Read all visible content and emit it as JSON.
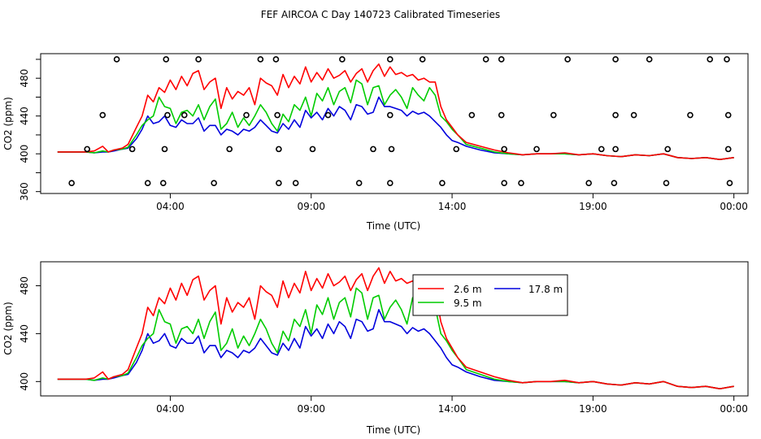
{
  "colors": {
    "s26": "#ff0000",
    "s95": "#00cc00",
    "s178": "#0000dd",
    "axis": "#000000"
  },
  "chart_data": [
    {
      "type": "line",
      "title": "FEF AIRCOA C  Day 140723  Calibrated Timeseries",
      "xlabel": "Time (UTC)",
      "ylabel": "CO2 (ppm)",
      "xlim": [
        -0.6,
        24.5
      ],
      "ylim": [
        358,
        506
      ],
      "xticks": [
        {
          "v": 4,
          "label": "04:00"
        },
        {
          "v": 9,
          "label": "09:00"
        },
        {
          "v": 14,
          "label": "14:00"
        },
        {
          "v": 19,
          "label": "19:00"
        },
        {
          "v": 24,
          "label": "00:00"
        }
      ],
      "yticks": [
        360,
        400,
        440,
        480
      ],
      "markers": {
        "y500": [
          2.1,
          3.85,
          5.0,
          7.2,
          7.75,
          10.1,
          11.8,
          12.95,
          15.2,
          15.75,
          18.1,
          19.8,
          21.0,
          23.15,
          23.75
        ],
        "y441": [
          1.6,
          3.9,
          4.5,
          6.7,
          7.8,
          9.6,
          11.8,
          14.7,
          15.75,
          17.6,
          19.8,
          20.45,
          22.45,
          23.8
        ],
        "y405": [
          1.05,
          2.65,
          3.8,
          6.1,
          7.85,
          9.05,
          11.2,
          11.85,
          14.15,
          15.85,
          17.0,
          19.3,
          19.8,
          21.65,
          23.8
        ],
        "y369": [
          0.5,
          3.2,
          3.75,
          5.55,
          7.85,
          8.45,
          10.7,
          11.8,
          13.65,
          15.85,
          16.45,
          18.85,
          19.75,
          21.6,
          23.85
        ]
      },
      "series": [
        {
          "name": "2.6 m",
          "x": [
            0,
            1,
            1.3,
            1.6,
            1.8,
            2,
            2.3,
            2.5,
            2.8,
            3,
            3.2,
            3.4,
            3.6,
            3.8,
            4,
            4.2,
            4.4,
            4.6,
            4.8,
            5,
            5.2,
            5.4,
            5.6,
            5.8,
            6,
            6.2,
            6.4,
            6.6,
            6.8,
            7,
            7.2,
            7.4,
            7.6,
            7.8,
            8,
            8.2,
            8.4,
            8.6,
            8.8,
            9,
            9.2,
            9.4,
            9.6,
            9.8,
            10,
            10.2,
            10.4,
            10.6,
            10.8,
            11,
            11.2,
            11.4,
            11.6,
            11.8,
            12,
            12.2,
            12.4,
            12.6,
            12.8,
            13,
            13.2,
            13.4,
            13.6,
            13.8,
            14,
            14.2,
            14.5,
            15,
            15.5,
            16,
            16.5,
            17,
            17.5,
            18,
            18.5,
            19,
            19.5,
            20,
            20.5,
            21,
            21.5,
            22,
            22.5,
            23,
            23.5,
            24
          ],
          "y": [
            402,
            402,
            403,
            408,
            402,
            404,
            406,
            410,
            428,
            440,
            462,
            455,
            470,
            465,
            478,
            468,
            482,
            472,
            485,
            488,
            468,
            476,
            480,
            448,
            470,
            458,
            466,
            462,
            470,
            452,
            480,
            475,
            472,
            462,
            484,
            470,
            482,
            474,
            492,
            476,
            486,
            478,
            490,
            480,
            483,
            488,
            476,
            485,
            490,
            476,
            488,
            495,
            482,
            492,
            484,
            486,
            482,
            484,
            478,
            480,
            476,
            476,
            450,
            436,
            428,
            420,
            412,
            408,
            404,
            401,
            399,
            400,
            400,
            401,
            399,
            400,
            398,
            397,
            399,
            398,
            400,
            396,
            395,
            396,
            394,
            396
          ]
        },
        {
          "name": "9.5 m",
          "x": [
            0,
            1,
            1.3,
            1.6,
            1.8,
            2,
            2.3,
            2.5,
            2.8,
            3,
            3.2,
            3.4,
            3.6,
            3.8,
            4,
            4.2,
            4.4,
            4.6,
            4.8,
            5,
            5.2,
            5.4,
            5.6,
            5.8,
            6,
            6.2,
            6.4,
            6.6,
            6.8,
            7,
            7.2,
            7.4,
            7.6,
            7.8,
            8,
            8.2,
            8.4,
            8.6,
            8.8,
            9,
            9.2,
            9.4,
            9.6,
            9.8,
            10,
            10.2,
            10.4,
            10.6,
            10.8,
            11,
            11.2,
            11.4,
            11.6,
            11.8,
            12,
            12.2,
            12.4,
            12.6,
            12.8,
            13,
            13.2,
            13.4,
            13.6,
            13.8,
            14,
            14.2,
            14.5,
            15,
            15.5,
            16,
            16.5,
            17,
            17.5,
            18,
            18.5,
            19,
            19.5,
            20,
            20.5,
            21,
            21.5,
            22,
            22.5,
            23,
            23.5,
            24
          ],
          "y": [
            402,
            402,
            401,
            403,
            402,
            404,
            405,
            407,
            420,
            430,
            436,
            440,
            460,
            450,
            448,
            432,
            444,
            446,
            440,
            452,
            436,
            450,
            458,
            426,
            432,
            444,
            428,
            438,
            430,
            440,
            452,
            444,
            432,
            424,
            442,
            434,
            452,
            446,
            460,
            440,
            464,
            456,
            470,
            452,
            466,
            470,
            454,
            478,
            474,
            452,
            470,
            472,
            452,
            462,
            468,
            460,
            448,
            470,
            462,
            456,
            470,
            462,
            440,
            434,
            426,
            420,
            410,
            406,
            402,
            400,
            399,
            400,
            400,
            400,
            399,
            400,
            398,
            397,
            399,
            398,
            400,
            396,
            395,
            396,
            394,
            396
          ]
        },
        {
          "name": "17.8 m",
          "x": [
            0,
            1,
            1.3,
            1.6,
            1.8,
            2,
            2.3,
            2.5,
            2.8,
            3,
            3.2,
            3.4,
            3.6,
            3.8,
            4,
            4.2,
            4.4,
            4.6,
            4.8,
            5,
            5.2,
            5.4,
            5.6,
            5.8,
            6,
            6.2,
            6.4,
            6.6,
            6.8,
            7,
            7.2,
            7.4,
            7.6,
            7.8,
            8,
            8.2,
            8.4,
            8.6,
            8.8,
            9,
            9.2,
            9.4,
            9.6,
            9.8,
            10,
            10.2,
            10.4,
            10.6,
            10.8,
            11,
            11.2,
            11.4,
            11.6,
            11.8,
            12,
            12.2,
            12.4,
            12.6,
            12.8,
            13,
            13.2,
            13.4,
            13.6,
            13.8,
            14,
            14.2,
            14.5,
            15,
            15.5,
            16,
            16.5,
            17,
            17.5,
            18,
            18.5,
            19,
            19.5,
            20,
            20.5,
            21,
            21.5,
            22,
            22.5,
            23,
            23.5,
            24
          ],
          "y": [
            402,
            402,
            401,
            402,
            402,
            403,
            405,
            406,
            416,
            426,
            440,
            432,
            434,
            440,
            430,
            428,
            436,
            432,
            432,
            438,
            424,
            430,
            430,
            420,
            426,
            424,
            420,
            426,
            424,
            428,
            436,
            430,
            424,
            422,
            432,
            426,
            436,
            428,
            446,
            438,
            444,
            436,
            448,
            440,
            450,
            446,
            436,
            452,
            450,
            442,
            444,
            460,
            450,
            450,
            448,
            446,
            440,
            445,
            442,
            444,
            440,
            434,
            428,
            420,
            414,
            412,
            408,
            404,
            401,
            400,
            399,
            400,
            400,
            400,
            399,
            400,
            398,
            397,
            399,
            398,
            400,
            396,
            395,
            396,
            394,
            396
          ]
        }
      ]
    },
    {
      "type": "line",
      "xlabel": "Time (UTC)",
      "ylabel": "CO2 (ppm)",
      "xlim": [
        -0.6,
        24.5
      ],
      "ylim": [
        388,
        500
      ],
      "xticks": [
        {
          "v": 4,
          "label": "04:00"
        },
        {
          "v": 9,
          "label": "09:00"
        },
        {
          "v": 14,
          "label": "14:00"
        },
        {
          "v": 19,
          "label": "19:00"
        },
        {
          "v": 24,
          "label": "00:00"
        }
      ],
      "yticks": [
        400,
        440,
        480
      ],
      "legend": {
        "position": "top-right",
        "entries": [
          "2.6 m",
          "17.8 m",
          "9.5 m"
        ]
      },
      "series_ref": "same as first panel"
    }
  ]
}
